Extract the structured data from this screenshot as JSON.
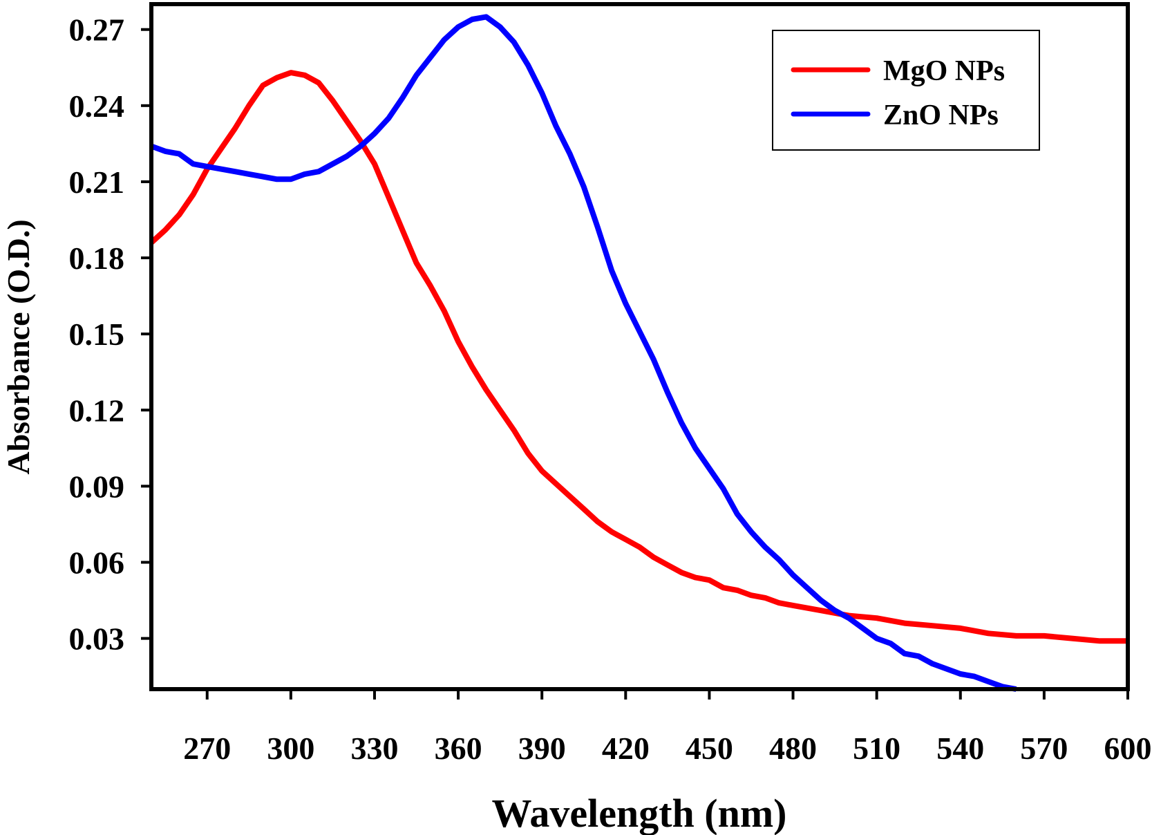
{
  "chart_data": {
    "type": "line",
    "title": "",
    "xlabel": "Wavelength (nm)",
    "ylabel": "Absorbance (O.D.)",
    "xlim": [
      250,
      600
    ],
    "ylim": [
      0.01,
      0.28
    ],
    "xticks": [
      270,
      300,
      330,
      360,
      390,
      420,
      450,
      480,
      510,
      540,
      570,
      600
    ],
    "yticks": [
      0.03,
      0.06,
      0.09,
      0.12,
      0.15,
      0.18,
      0.21,
      0.24,
      0.27
    ],
    "xtick_labels": [
      "270",
      "300",
      "330",
      "360",
      "390",
      "420",
      "450",
      "480",
      "510",
      "540",
      "570",
      "600"
    ],
    "ytick_labels": [
      "0.03",
      "0.06",
      "0.09",
      "0.12",
      "0.15",
      "0.18",
      "0.21",
      "0.24",
      "0.27"
    ],
    "legend_position": "top-right",
    "series": [
      {
        "name": "MgO NPs",
        "color": "#ff0000",
        "x": [
          250,
          255,
          260,
          265,
          270,
          275,
          280,
          285,
          290,
          295,
          300,
          305,
          310,
          315,
          320,
          325,
          330,
          335,
          340,
          345,
          350,
          355,
          360,
          365,
          370,
          375,
          380,
          385,
          390,
          395,
          400,
          405,
          410,
          415,
          420,
          425,
          430,
          435,
          440,
          445,
          450,
          455,
          460,
          465,
          470,
          475,
          480,
          490,
          500,
          510,
          520,
          530,
          540,
          550,
          560,
          570,
          580,
          590,
          600
        ],
        "values": [
          0.186,
          0.191,
          0.197,
          0.205,
          0.215,
          0.223,
          0.231,
          0.24,
          0.248,
          0.251,
          0.253,
          0.252,
          0.249,
          0.242,
          0.234,
          0.226,
          0.217,
          0.204,
          0.191,
          0.178,
          0.169,
          0.159,
          0.147,
          0.137,
          0.128,
          0.12,
          0.112,
          0.103,
          0.096,
          0.091,
          0.086,
          0.081,
          0.076,
          0.072,
          0.069,
          0.066,
          0.062,
          0.059,
          0.056,
          0.054,
          0.053,
          0.05,
          0.049,
          0.047,
          0.046,
          0.044,
          0.043,
          0.041,
          0.039,
          0.038,
          0.036,
          0.035,
          0.034,
          0.032,
          0.031,
          0.031,
          0.03,
          0.029,
          0.029
        ]
      },
      {
        "name": "ZnO NPs",
        "color": "#0000ff",
        "x": [
          250,
          255,
          260,
          265,
          270,
          275,
          280,
          285,
          290,
          295,
          300,
          305,
          310,
          315,
          320,
          325,
          330,
          335,
          340,
          345,
          350,
          355,
          360,
          365,
          370,
          375,
          380,
          385,
          390,
          395,
          400,
          405,
          410,
          415,
          420,
          425,
          430,
          435,
          440,
          445,
          450,
          455,
          460,
          465,
          470,
          475,
          480,
          485,
          490,
          495,
          500,
          505,
          510,
          515,
          520,
          525,
          530,
          535,
          540,
          545,
          550,
          555,
          560
        ],
        "values": [
          0.224,
          0.222,
          0.221,
          0.217,
          0.216,
          0.215,
          0.214,
          0.213,
          0.212,
          0.211,
          0.211,
          0.213,
          0.214,
          0.217,
          0.22,
          0.224,
          0.229,
          0.235,
          0.243,
          0.252,
          0.259,
          0.266,
          0.271,
          0.274,
          0.275,
          0.271,
          0.265,
          0.256,
          0.245,
          0.232,
          0.221,
          0.208,
          0.192,
          0.175,
          0.162,
          0.151,
          0.14,
          0.127,
          0.115,
          0.105,
          0.097,
          0.089,
          0.079,
          0.072,
          0.066,
          0.061,
          0.055,
          0.05,
          0.045,
          0.041,
          0.038,
          0.034,
          0.03,
          0.028,
          0.024,
          0.023,
          0.02,
          0.018,
          0.016,
          0.015,
          0.013,
          0.011,
          0.01
        ]
      }
    ]
  }
}
